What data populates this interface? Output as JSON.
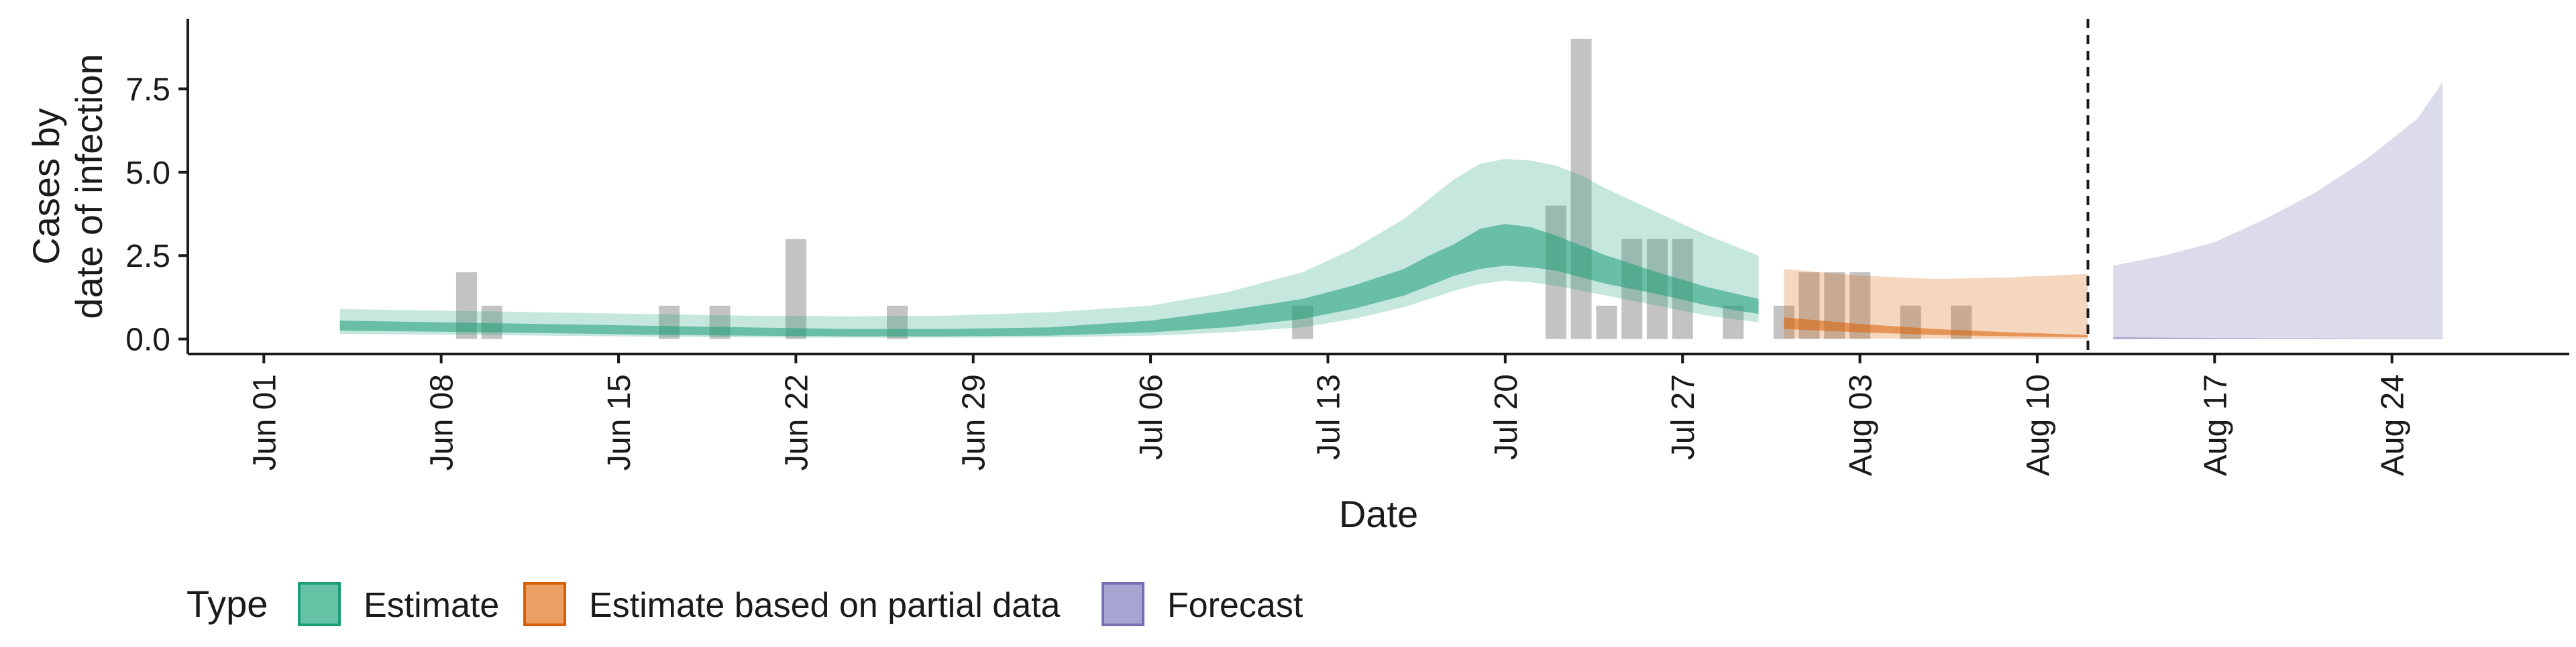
{
  "chart_data": {
    "type": "area",
    "xlabel": "Date",
    "ylabel_lines": [
      "Cases by",
      "date of infection"
    ],
    "x_ticks": [
      "Jun 01",
      "Jun 08",
      "Jun 15",
      "Jun 22",
      "Jun 29",
      "Jul 06",
      "Jul 13",
      "Jul 20",
      "Jul 27",
      "Aug 03",
      "Aug 10",
      "Aug 17",
      "Aug 24"
    ],
    "x_tick_dates": [
      "06-01",
      "06-08",
      "06-15",
      "06-22",
      "06-29",
      "07-06",
      "07-13",
      "07-20",
      "07-27",
      "08-03",
      "08-10",
      "08-17",
      "08-24"
    ],
    "y_ticks": [
      "0.0",
      "2.5",
      "5.0",
      "7.5"
    ],
    "y_tick_values": [
      0,
      2.5,
      5.0,
      7.5
    ],
    "xlim": [
      "05-29",
      "08-31"
    ],
    "ylim": [
      -0.45,
      9.6
    ],
    "vline_date": "08-12",
    "legend": {
      "title": "Type",
      "position": "bottom",
      "items": [
        {
          "label": "Estimate",
          "fill": "#66c2a5",
          "stroke": "#1b9e77"
        },
        {
          "label": "Estimate based on partial data",
          "fill": "#ec9f63",
          "stroke": "#d95f02"
        },
        {
          "label": "Forecast",
          "fill": "#a8a4d2",
          "stroke": "#7570b3"
        }
      ]
    },
    "colors": {
      "estimate": "#1b9e77",
      "partial": "#d95f02",
      "forecast": "#7570b3",
      "bars": "#bdbdbd"
    },
    "observed_cases": [
      {
        "date": "06-09",
        "value": 2
      },
      {
        "date": "06-10",
        "value": 1
      },
      {
        "date": "06-17",
        "value": 1
      },
      {
        "date": "06-19",
        "value": 1
      },
      {
        "date": "06-22",
        "value": 3
      },
      {
        "date": "06-26",
        "value": 1
      },
      {
        "date": "07-12",
        "value": 1
      },
      {
        "date": "07-22",
        "value": 4
      },
      {
        "date": "07-23",
        "value": 9
      },
      {
        "date": "07-24",
        "value": 1
      },
      {
        "date": "07-25",
        "value": 3
      },
      {
        "date": "07-26",
        "value": 3
      },
      {
        "date": "07-27",
        "value": 3
      },
      {
        "date": "07-29",
        "value": 1
      },
      {
        "date": "07-31",
        "value": 1
      },
      {
        "date": "08-01",
        "value": 2
      },
      {
        "date": "08-02",
        "value": 2
      },
      {
        "date": "08-03",
        "value": 2
      },
      {
        "date": "08-05",
        "value": 1
      },
      {
        "date": "08-07",
        "value": 1
      }
    ],
    "estimate": {
      "date": [
        "06-04",
        "06-08",
        "06-12",
        "06-16",
        "06-20",
        "06-24",
        "06-28",
        "07-02",
        "07-06",
        "07-09",
        "07-12",
        "07-14",
        "07-16",
        "07-17",
        "07-18",
        "07-19",
        "07-20",
        "07-21",
        "07-22",
        "07-23",
        "07-24",
        "07-26",
        "07-28",
        "07-30"
      ],
      "lower90": [
        0.15,
        0.13,
        0.1,
        0.07,
        0.05,
        0.04,
        0.04,
        0.05,
        0.1,
        0.2,
        0.35,
        0.6,
        0.95,
        1.2,
        1.45,
        1.65,
        1.75,
        1.7,
        1.6,
        1.45,
        1.3,
        1.0,
        0.7,
        0.5
      ],
      "upper90": [
        0.9,
        0.85,
        0.8,
        0.75,
        0.7,
        0.68,
        0.7,
        0.8,
        1.0,
        1.4,
        2.0,
        2.7,
        3.6,
        4.2,
        4.8,
        5.25,
        5.4,
        5.35,
        5.2,
        4.9,
        4.5,
        3.8,
        3.1,
        2.5
      ],
      "lower50": [
        0.25,
        0.22,
        0.18,
        0.13,
        0.1,
        0.08,
        0.08,
        0.1,
        0.2,
        0.35,
        0.6,
        0.9,
        1.3,
        1.6,
        1.9,
        2.1,
        2.2,
        2.15,
        2.05,
        1.85,
        1.65,
        1.35,
        1.0,
        0.75
      ],
      "upper50": [
        0.55,
        0.5,
        0.45,
        0.4,
        0.35,
        0.3,
        0.3,
        0.35,
        0.55,
        0.85,
        1.2,
        1.6,
        2.1,
        2.5,
        2.85,
        3.3,
        3.45,
        3.35,
        3.1,
        2.8,
        2.5,
        2.0,
        1.55,
        1.2
      ]
    },
    "partial": {
      "date": [
        "07-31",
        "08-03",
        "08-06",
        "08-09",
        "08-12"
      ],
      "lower90": [
        0.02,
        0.01,
        0.01,
        0.0,
        0.0
      ],
      "upper90": [
        2.1,
        1.9,
        1.8,
        1.85,
        1.95
      ],
      "lower50": [
        0.3,
        0.2,
        0.12,
        0.08,
        0.05
      ],
      "upper50": [
        0.65,
        0.45,
        0.3,
        0.2,
        0.12
      ]
    },
    "forecast": {
      "date": [
        "08-13",
        "08-15",
        "08-17",
        "08-19",
        "08-21",
        "08-23",
        "08-25",
        "08-26"
      ],
      "lower90": [
        0.0,
        0.0,
        0.0,
        0.0,
        0.0,
        0.0,
        0.0,
        0.0
      ],
      "upper90": [
        2.2,
        2.5,
        2.9,
        3.6,
        4.4,
        5.4,
        6.6,
        7.7
      ],
      "lower50": [
        0.0,
        0.0,
        0.0,
        0.0,
        0.0,
        0.0,
        0.0,
        0.0
      ],
      "upper50": [
        0.05,
        0.04,
        0.03,
        0.02,
        0.02,
        0.01,
        0.01,
        0.01
      ]
    }
  }
}
